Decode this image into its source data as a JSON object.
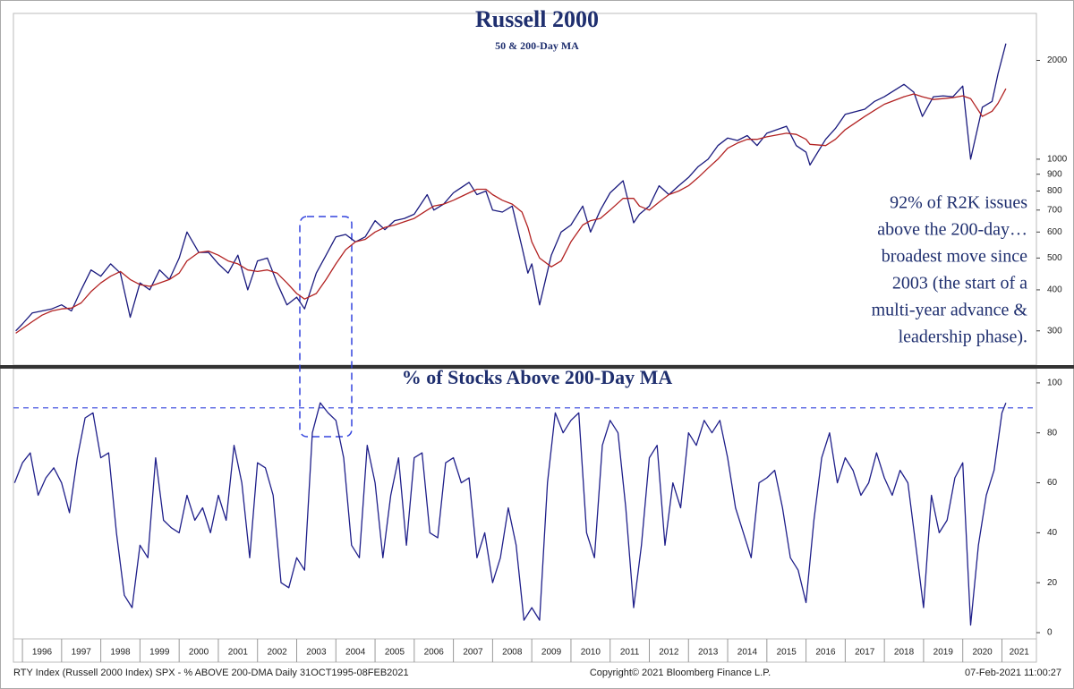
{
  "chart_data": [
    {
      "type": "line",
      "title": "Russell 2000",
      "subtitle": "50 & 200-Day MA",
      "annotation": [
        "92% of R2K issues",
        "above the 200-day…",
        "broadest move since",
        "2003 (the start of a",
        "multi-year advance &",
        "leadership phase)."
      ],
      "ylog": true,
      "xlim": [
        1995.77,
        2021.88
      ],
      "ylim": [
        236,
        2780
      ],
      "yticks": [
        300,
        400,
        500,
        600,
        700,
        800,
        900,
        1000,
        2000
      ],
      "x": [
        1995.83,
        1996,
        1996.25,
        1996.5,
        1996.75,
        1997,
        1997.25,
        1997.5,
        1997.75,
        1998,
        1998.25,
        1998.5,
        1998.75,
        1999,
        1999.25,
        1999.5,
        1999.75,
        2000,
        2000.2,
        2000.5,
        2000.75,
        2001,
        2001.25,
        2001.5,
        2001.75,
        2002,
        2002.25,
        2002.5,
        2002.75,
        2003,
        2003.2,
        2003.5,
        2003.75,
        2004,
        2004.25,
        2004.5,
        2004.75,
        2005,
        2005.25,
        2005.5,
        2005.75,
        2006,
        2006.33,
        2006.5,
        2006.75,
        2007,
        2007.4,
        2007.6,
        2007.83,
        2008,
        2008.25,
        2008.5,
        2008.75,
        2008.9,
        2009,
        2009.2,
        2009.5,
        2009.75,
        2010,
        2010.3,
        2010.5,
        2010.75,
        2011,
        2011.33,
        2011.6,
        2011.75,
        2012,
        2012.25,
        2012.5,
        2012.75,
        2013,
        2013.25,
        2013.5,
        2013.75,
        2014,
        2014.25,
        2014.5,
        2014.75,
        2015,
        2015.5,
        2015.75,
        2016,
        2016.1,
        2016.5,
        2016.75,
        2017,
        2017.5,
        2017.75,
        2018,
        2018.5,
        2018.75,
        2018.97,
        2019.25,
        2019.5,
        2019.75,
        2020,
        2020.2,
        2020.5,
        2020.75,
        2020.9,
        2021.1
      ],
      "series": [
        {
          "color": "#1a1a7e",
          "values": [
            300,
            315,
            340,
            345,
            350,
            360,
            345,
            400,
            460,
            440,
            480,
            450,
            330,
            420,
            400,
            460,
            430,
            500,
            600,
            520,
            520,
            480,
            450,
            510,
            400,
            490,
            500,
            420,
            360,
            380,
            350,
            450,
            510,
            580,
            590,
            560,
            580,
            650,
            610,
            650,
            660,
            680,
            780,
            700,
            730,
            790,
            850,
            780,
            800,
            700,
            690,
            720,
            540,
            450,
            480,
            360,
            510,
            600,
            630,
            720,
            600,
            700,
            790,
            860,
            640,
            680,
            720,
            830,
            780,
            830,
            880,
            950,
            1000,
            1100,
            1160,
            1140,
            1180,
            1100,
            1200,
            1260,
            1100,
            1050,
            960,
            1150,
            1240,
            1370,
            1420,
            1500,
            1550,
            1690,
            1600,
            1350,
            1550,
            1560,
            1550,
            1670,
            1000,
            1440,
            1500,
            1820,
            2250
          ]
        },
        {
          "color": "#b22222",
          "values": [
            295,
            305,
            320,
            335,
            345,
            350,
            352,
            365,
            395,
            420,
            440,
            455,
            430,
            415,
            410,
            420,
            430,
            450,
            490,
            520,
            525,
            510,
            490,
            480,
            460,
            455,
            460,
            450,
            420,
            390,
            375,
            390,
            430,
            480,
            530,
            560,
            570,
            600,
            620,
            630,
            645,
            660,
            700,
            720,
            730,
            750,
            790,
            810,
            810,
            780,
            750,
            730,
            690,
            620,
            560,
            500,
            470,
            490,
            560,
            630,
            650,
            660,
            700,
            760,
            760,
            720,
            700,
            740,
            780,
            800,
            830,
            880,
            940,
            1000,
            1080,
            1120,
            1150,
            1150,
            1170,
            1200,
            1190,
            1150,
            1110,
            1100,
            1150,
            1230,
            1350,
            1410,
            1470,
            1550,
            1580,
            1550,
            1520,
            1530,
            1540,
            1560,
            1530,
            1350,
            1400,
            1480,
            1640
          ]
        }
      ]
    },
    {
      "type": "line",
      "title": "% of Stocks Above 200-Day MA",
      "xlim": [
        1995.77,
        2021.88
      ],
      "ylim": [
        -2.5,
        105.7
      ],
      "yticks": [
        0,
        20,
        40,
        60,
        80,
        100
      ],
      "reference_line": 90,
      "xticks": [
        1996,
        1997,
        1998,
        1999,
        2000,
        2001,
        2002,
        2003,
        2004,
        2005,
        2006,
        2007,
        2008,
        2009,
        2010,
        2011,
        2012,
        2013,
        2014,
        2015,
        2016,
        2017,
        2018,
        2019,
        2020,
        2021
      ],
      "x": [
        1995.8,
        1996,
        1996.2,
        1996.4,
        1996.6,
        1996.8,
        1997,
        1997.2,
        1997.4,
        1997.6,
        1997.8,
        1998,
        1998.2,
        1998.4,
        1998.6,
        1998.8,
        1999,
        1999.2,
        1999.4,
        1999.6,
        1999.8,
        2000,
        2000.2,
        2000.4,
        2000.6,
        2000.8,
        2001,
        2001.2,
        2001.4,
        2001.6,
        2001.8,
        2002,
        2002.2,
        2002.4,
        2002.6,
        2002.8,
        2003,
        2003.2,
        2003.4,
        2003.6,
        2003.8,
        2004,
        2004.2,
        2004.4,
        2004.6,
        2004.8,
        2005,
        2005.2,
        2005.4,
        2005.6,
        2005.8,
        2006,
        2006.2,
        2006.4,
        2006.6,
        2006.8,
        2007,
        2007.2,
        2007.4,
        2007.6,
        2007.8,
        2008,
        2008.2,
        2008.4,
        2008.6,
        2008.8,
        2009,
        2009.2,
        2009.4,
        2009.6,
        2009.8,
        2010,
        2010.2,
        2010.4,
        2010.6,
        2010.8,
        2011,
        2011.2,
        2011.4,
        2011.6,
        2011.8,
        2012,
        2012.2,
        2012.4,
        2012.6,
        2012.8,
        2013,
        2013.2,
        2013.4,
        2013.6,
        2013.8,
        2014,
        2014.2,
        2014.4,
        2014.6,
        2014.8,
        2015,
        2015.2,
        2015.4,
        2015.6,
        2015.8,
        2016,
        2016.2,
        2016.4,
        2016.6,
        2016.8,
        2017,
        2017.2,
        2017.4,
        2017.6,
        2017.8,
        2018,
        2018.2,
        2018.4,
        2018.6,
        2018.8,
        2019,
        2019.2,
        2019.4,
        2019.6,
        2019.8,
        2020,
        2020.2,
        2020.4,
        2020.6,
        2020.8,
        2021,
        2021.1
      ],
      "color": "#1f1f8a",
      "values": [
        60,
        68,
        72,
        55,
        62,
        66,
        60,
        48,
        70,
        86,
        88,
        70,
        72,
        40,
        15,
        10,
        35,
        30,
        70,
        45,
        42,
        40,
        55,
        45,
        50,
        40,
        55,
        45,
        75,
        60,
        30,
        68,
        66,
        55,
        20,
        18,
        30,
        25,
        80,
        92,
        88,
        85,
        70,
        35,
        30,
        75,
        60,
        30,
        55,
        70,
        35,
        70,
        72,
        40,
        38,
        68,
        70,
        60,
        62,
        30,
        40,
        20,
        30,
        50,
        35,
        5,
        10,
        5,
        60,
        88,
        80,
        85,
        88,
        40,
        30,
        75,
        85,
        80,
        50,
        10,
        35,
        70,
        75,
        35,
        60,
        50,
        80,
        75,
        85,
        80,
        85,
        70,
        50,
        40,
        30,
        60,
        62,
        65,
        50,
        30,
        25,
        12,
        45,
        70,
        80,
        60,
        70,
        65,
        55,
        60,
        72,
        62,
        55,
        65,
        60,
        35,
        10,
        55,
        40,
        45,
        62,
        68,
        3,
        35,
        55,
        65,
        88,
        92
      ]
    }
  ],
  "footer": {
    "left": "RTY Index (Russell 2000 Index) SPX - % ABOVE 200-DMA  Daily 31OCT1995-08FEB2021",
    "center": "Copyright© 2021 Bloomberg Finance L.P.",
    "right": "07-Feb-2021 11:00:27"
  }
}
